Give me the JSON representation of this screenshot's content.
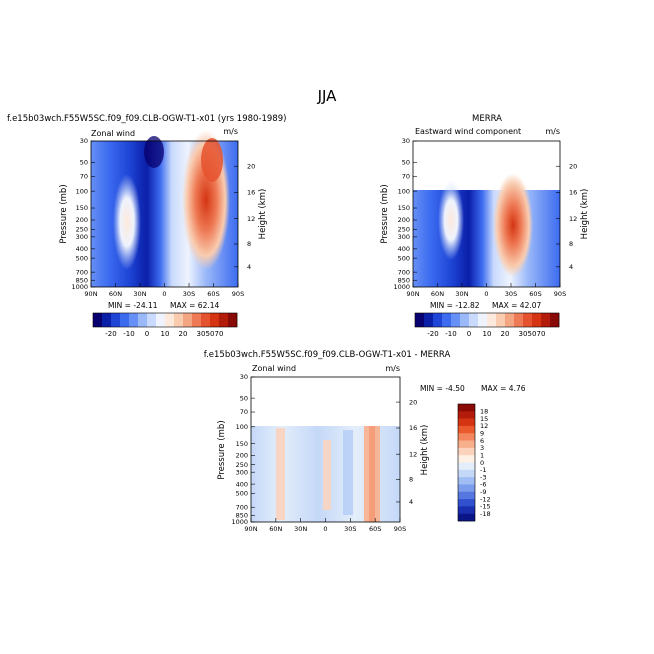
{
  "page": {
    "season_title": "JJA"
  },
  "chart_data": [
    {
      "type": "heatmap",
      "title": "f.e15b03wch.F55W5SC.f09_f09.CLB-OGW-T1-x01 (yrs 1980-1989)",
      "variable_label": "Zonal wind",
      "units": "m/s",
      "ylabel": "Pressure (mb)",
      "y2label": "Height (km)",
      "x_ticks": [
        "90N",
        "60N",
        "30N",
        "0",
        "30S",
        "60S",
        "90S"
      ],
      "y_ticks": [
        "30",
        "50",
        "70",
        "100",
        "150",
        "200",
        "250",
        "300",
        "400",
        "500",
        "700",
        "850",
        "1000"
      ],
      "height_ticks": [
        "20",
        "16",
        "12",
        "8",
        "4"
      ],
      "y_range_mb": [
        30,
        1000
      ],
      "stats": {
        "min_label": "MIN = -24.11",
        "max_label": "MAX = 62.14",
        "min": -24.11,
        "max": 62.14
      },
      "colorbar": {
        "orientation": "horizontal",
        "tick_labels": [
          "-20",
          "-10",
          "0",
          "10",
          "20",
          "30",
          "50",
          "70"
        ],
        "levels": [
          -25,
          -20,
          -15,
          -10,
          -5,
          0,
          5,
          10,
          15,
          20,
          25,
          30,
          40,
          50,
          60,
          70
        ],
        "colors": [
          "#08006e",
          "#0a1fa8",
          "#1e45d6",
          "#3c6bf0",
          "#6690f5",
          "#9bb9f9",
          "#c9dafc",
          "#eef3fd",
          "#fde9dc",
          "#f9ccb0",
          "#f4a582",
          "#ee7a55",
          "#e5522e",
          "#d43412",
          "#b31b0a",
          "#870a06"
        ]
      },
      "data_mask_top_mb": 30
    },
    {
      "type": "heatmap",
      "title": "MERRA",
      "variable_label": "Eastward wind component",
      "units": "m/s",
      "ylabel": "Pressure (mb)",
      "y2label": "Height (km)",
      "x_ticks": [
        "90N",
        "60N",
        "30N",
        "0",
        "30S",
        "60S",
        "90S"
      ],
      "y_ticks": [
        "30",
        "50",
        "70",
        "100",
        "150",
        "200",
        "250",
        "300",
        "400",
        "500",
        "700",
        "850",
        "1000"
      ],
      "height_ticks": [
        "20",
        "16",
        "12",
        "8",
        "4"
      ],
      "y_range_mb": [
        30,
        1000
      ],
      "stats": {
        "min_label": "MIN = -12.82",
        "max_label": "MAX = 42.07",
        "min": -12.82,
        "max": 42.07
      },
      "colorbar": {
        "orientation": "horizontal",
        "tick_labels": [
          "-20",
          "-10",
          "0",
          "10",
          "20",
          "30",
          "50",
          "70"
        ],
        "levels": [
          -25,
          -20,
          -15,
          -10,
          -5,
          0,
          5,
          10,
          15,
          20,
          25,
          30,
          40,
          50,
          60,
          70
        ],
        "colors": [
          "#08006e",
          "#0a1fa8",
          "#1e45d6",
          "#3c6bf0",
          "#6690f5",
          "#9bb9f9",
          "#c9dafc",
          "#eef3fd",
          "#fde9dc",
          "#f9ccb0",
          "#f4a582",
          "#ee7a55",
          "#e5522e",
          "#d43412",
          "#b31b0a",
          "#870a06"
        ]
      },
      "data_mask_top_mb": 100
    },
    {
      "type": "heatmap",
      "title": "f.e15b03wch.F55W5SC.f09_f09.CLB-OGW-T1-x01 - MERRA",
      "variable_label": "Zonal wind",
      "units": "m/s",
      "ylabel": "Pressure (mb)",
      "y2label": "Height (km)",
      "x_ticks": [
        "90N",
        "60N",
        "30N",
        "0",
        "30S",
        "60S",
        "90S"
      ],
      "y_ticks": [
        "30",
        "50",
        "70",
        "100",
        "150",
        "200",
        "250",
        "300",
        "400",
        "500",
        "700",
        "850",
        "1000"
      ],
      "height_ticks": [
        "20",
        "16",
        "12",
        "8",
        "4"
      ],
      "y_range_mb": [
        30,
        1000
      ],
      "stats": {
        "min_label": "MIN =  -4.50",
        "max_label": "MAX =   4.76",
        "min": -4.5,
        "max": 4.76
      },
      "colorbar": {
        "orientation": "vertical",
        "tick_labels": [
          "18",
          "15",
          "12",
          "9",
          "6",
          "3",
          "1",
          "0",
          "-1",
          "-3",
          "-6",
          "-9",
          "-12",
          "-15",
          "-18"
        ],
        "colors": [
          "#8a0a06",
          "#b31b0a",
          "#d43412",
          "#ea5a2c",
          "#f3865c",
          "#f8b08c",
          "#fbd3bd",
          "#fff0e6",
          "#e4eefb",
          "#c4d8f8",
          "#a0bef3",
          "#7b9deb",
          "#5676e0",
          "#3050cf",
          "#1a2fb0",
          "#0a1587"
        ]
      },
      "data_mask_top_mb": 100
    }
  ]
}
